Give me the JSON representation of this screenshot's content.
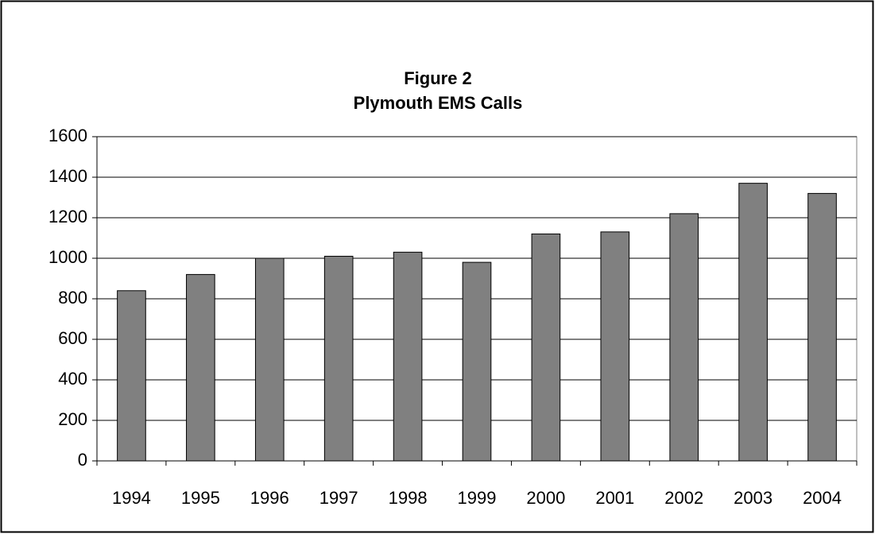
{
  "chart_data": {
    "type": "bar",
    "title": "Figure 2",
    "subtitle": "Plymouth EMS Calls",
    "categories": [
      "1994",
      "1995",
      "1996",
      "1997",
      "1998",
      "1999",
      "2000",
      "2001",
      "2002",
      "2003",
      "2004"
    ],
    "values": [
      840,
      920,
      1000,
      1010,
      1030,
      980,
      1120,
      1130,
      1220,
      1370,
      1320
    ],
    "color": "#808080",
    "ylim": [
      0,
      1600
    ],
    "yticks": [
      0,
      200,
      400,
      600,
      800,
      1000,
      1200,
      1400,
      1600
    ],
    "grid": true
  }
}
